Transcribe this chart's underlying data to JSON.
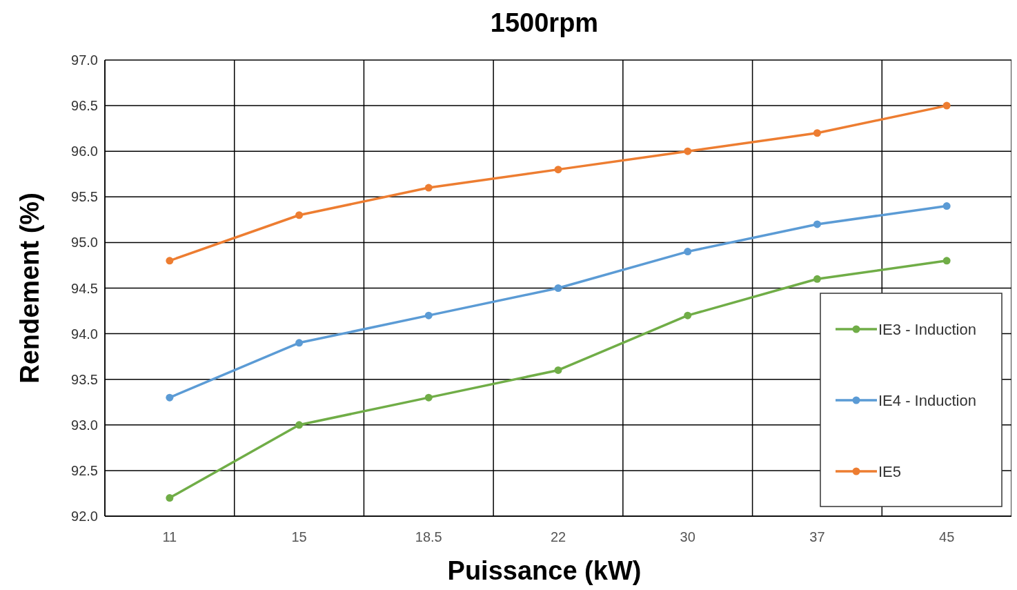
{
  "chart_data": {
    "type": "line",
    "title": "1500rpm",
    "xlabel": "Puissance (kW)",
    "ylabel": "Rendement (%)",
    "categories": [
      "11",
      "15",
      "18.5",
      "22",
      "30",
      "37",
      "45"
    ],
    "series": [
      {
        "name": "IE3 - Induction",
        "color": "#70ad47",
        "values": [
          92.2,
          93.0,
          93.3,
          93.6,
          94.2,
          94.6,
          94.8
        ]
      },
      {
        "name": "IE4 - Induction",
        "color": "#5b9bd5",
        "values": [
          93.3,
          93.9,
          94.2,
          94.5,
          94.9,
          95.2,
          95.4
        ]
      },
      {
        "name": "IE5",
        "color": "#ed7d31",
        "values": [
          94.8,
          95.3,
          95.6,
          95.8,
          96.0,
          96.2,
          96.5
        ]
      }
    ],
    "ylim": [
      92,
      97
    ],
    "yticks": [
      {
        "value": 92,
        "label": "92.0"
      },
      {
        "value": 92.5,
        "label": "92.5"
      },
      {
        "value": 93,
        "label": "93.0"
      },
      {
        "value": 93.5,
        "label": "93.5"
      },
      {
        "value": 94,
        "label": "94.0"
      },
      {
        "value": 94.5,
        "label": "94.5"
      },
      {
        "value": 95,
        "label": "95.0"
      },
      {
        "value": 95.5,
        "label": "95.5"
      },
      {
        "value": 96,
        "label": "96.0"
      },
      {
        "value": 96.5,
        "label": "96.5"
      },
      {
        "value": 97,
        "label": "97.0"
      }
    ],
    "grid": true,
    "legend": "bottom right",
    "marker": "circle",
    "line_style": "solid"
  }
}
